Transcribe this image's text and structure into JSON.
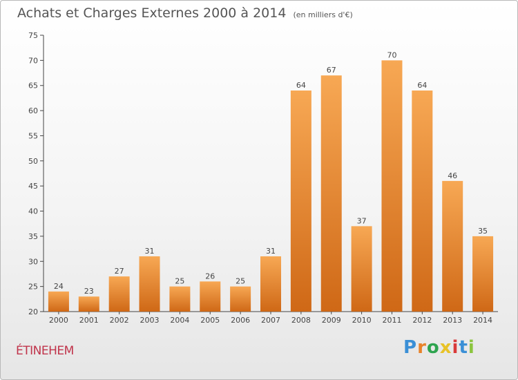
{
  "header": {
    "title": "Achats et Charges Externes 2000 à 2014",
    "subtitle": "(en milliers d'€)"
  },
  "footer": {
    "place": "ÉTINEHEM",
    "logo": {
      "text": "Proxiti",
      "letter_colors": [
        "#3a8fd6",
        "#e8832a",
        "#2ea44f",
        "#e8c227",
        "#d93a3a",
        "#3a8fd6",
        "#8bc53f"
      ]
    }
  },
  "colors": {
    "bar_light": "#f7a854",
    "bar_dark": "#cf6816",
    "axis": "#444444",
    "grid": "#d0d0d0",
    "label": "#444444"
  },
  "chart_data": {
    "type": "bar",
    "categories": [
      "2000",
      "2001",
      "2002",
      "2003",
      "2004",
      "2005",
      "2006",
      "2007",
      "2008",
      "2009",
      "2010",
      "2011",
      "2012",
      "2013",
      "2014"
    ],
    "values": [
      24,
      23,
      27,
      31,
      25,
      26,
      25,
      31,
      64,
      67,
      37,
      70,
      64,
      46,
      35
    ],
    "ylim": [
      20,
      75
    ],
    "yticks": [
      20,
      25,
      30,
      35,
      40,
      45,
      50,
      55,
      60,
      65,
      70,
      75
    ],
    "grid": false,
    "data_labels": true
  }
}
